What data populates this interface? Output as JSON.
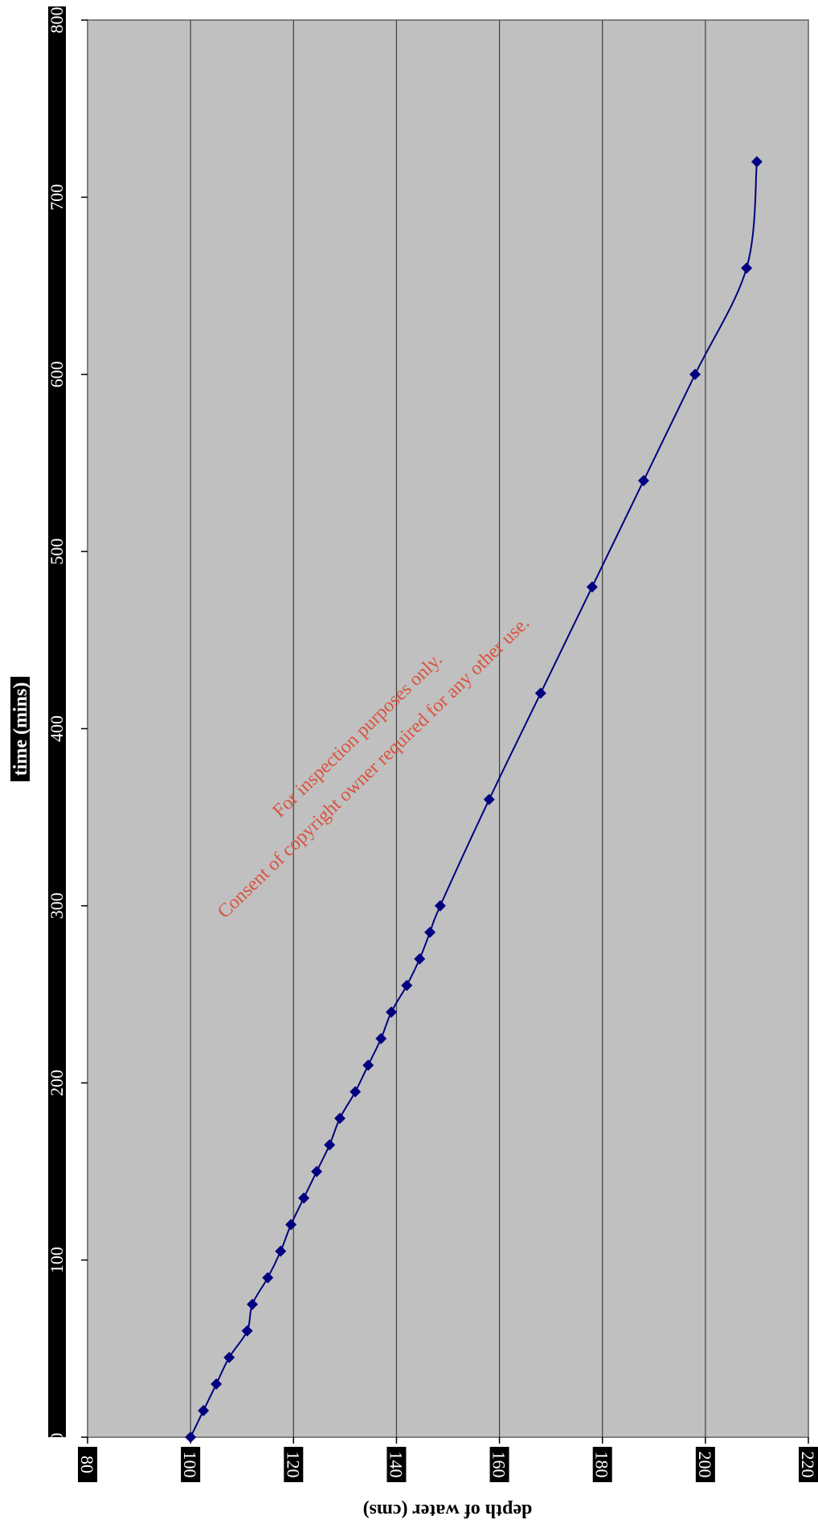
{
  "chart_data": {
    "type": "line",
    "orientation": "rotated-90-clockwise",
    "x_axis": {
      "label": "depth of water (cms)",
      "range": [
        80,
        220
      ],
      "ticks": [
        "80",
        "100",
        "120",
        "140",
        "160",
        "180",
        "200",
        "220"
      ],
      "grid": true
    },
    "y_axis": {
      "label": "time (mins)",
      "range": [
        0,
        800
      ],
      "ticks": [
        "0",
        "100",
        "200",
        "300",
        "400",
        "500",
        "600",
        "700",
        "800"
      ]
    },
    "series": [
      {
        "marker": "diamond",
        "smooth": true,
        "color": "#000080",
        "points": [
          {
            "x": 100,
            "y": 0
          },
          {
            "x": 102.5,
            "y": 15
          },
          {
            "x": 105,
            "y": 30
          },
          {
            "x": 107.5,
            "y": 45
          },
          {
            "x": 111,
            "y": 60
          },
          {
            "x": 112,
            "y": 75
          },
          {
            "x": 115,
            "y": 90
          },
          {
            "x": 117.5,
            "y": 105
          },
          {
            "x": 119.5,
            "y": 120
          },
          {
            "x": 122,
            "y": 135
          },
          {
            "x": 124.5,
            "y": 150
          },
          {
            "x": 127,
            "y": 165
          },
          {
            "x": 129,
            "y": 180
          },
          {
            "x": 132,
            "y": 195
          },
          {
            "x": 134.5,
            "y": 210
          },
          {
            "x": 137,
            "y": 225
          },
          {
            "x": 139,
            "y": 240
          },
          {
            "x": 142,
            "y": 255
          },
          {
            "x": 144.5,
            "y": 270
          },
          {
            "x": 146.5,
            "y": 285
          },
          {
            "x": 148.5,
            "y": 300
          },
          {
            "x": 158,
            "y": 360
          },
          {
            "x": 168,
            "y": 420
          },
          {
            "x": 178,
            "y": 480
          },
          {
            "x": 188,
            "y": 540
          },
          {
            "x": 198,
            "y": 600
          },
          {
            "x": 208,
            "y": 660
          },
          {
            "x": 210,
            "y": 720
          }
        ]
      }
    ],
    "plot_background": "#c0c0c0",
    "grid_color": "#404040"
  },
  "watermark": {
    "line1": "For inspection purposes only.",
    "line2": "Consent of copyright owner required for any other use.",
    "color": "#d9533f"
  }
}
